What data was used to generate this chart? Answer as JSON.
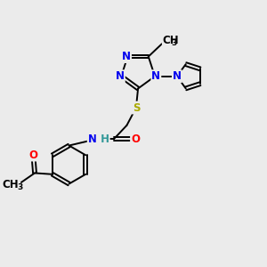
{
  "bg_color": "#ebebeb",
  "atom_colors": {
    "N": "#0000ee",
    "S": "#aaaa00",
    "O": "#ff0000",
    "C": "#000000",
    "H": "#339999"
  },
  "bond_color": "#000000",
  "lw": 1.4,
  "fs": 8.5,
  "fs_sub": 6.5
}
